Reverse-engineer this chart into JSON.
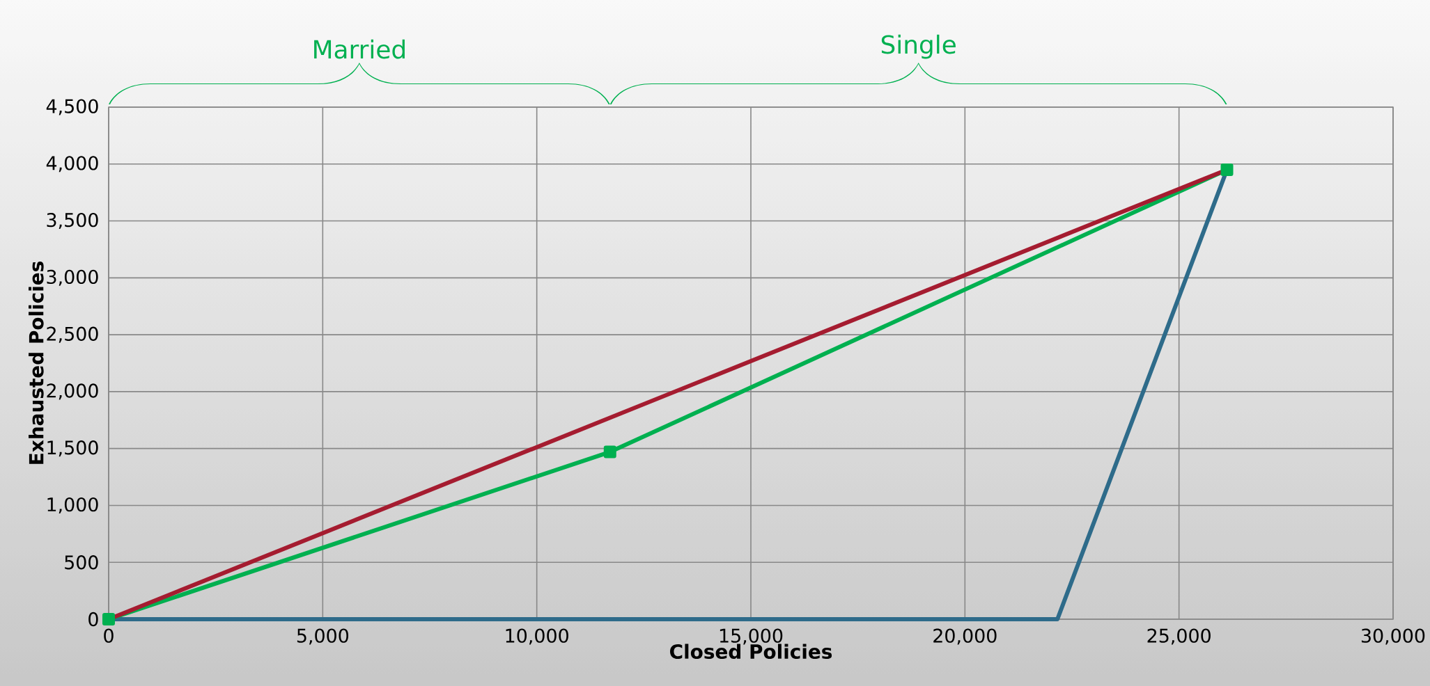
{
  "chart_data": {
    "type": "line",
    "xlabel": "Closed Policies",
    "ylabel": "Exhausted Policies",
    "xlim": [
      0,
      30000
    ],
    "ylim": [
      0,
      4500
    ],
    "xticks": [
      {
        "value": 0,
        "label": "0"
      },
      {
        "value": 5000,
        "label": "5,000"
      },
      {
        "value": 10000,
        "label": "10,000"
      },
      {
        "value": 15000,
        "label": "15,000"
      },
      {
        "value": 20000,
        "label": "20,000"
      },
      {
        "value": 25000,
        "label": "25,000"
      },
      {
        "value": 30000,
        "label": "30,000"
      }
    ],
    "yticks": [
      {
        "value": 0,
        "label": "0"
      },
      {
        "value": 500,
        "label": "500"
      },
      {
        "value": 1000,
        "label": "1,000"
      },
      {
        "value": 1500,
        "label": "1,500"
      },
      {
        "value": 2000,
        "label": "2,000"
      },
      {
        "value": 2500,
        "label": "2,500"
      },
      {
        "value": 3000,
        "label": "3,000"
      },
      {
        "value": 3500,
        "label": "3,500"
      },
      {
        "value": 4000,
        "label": "4,000"
      },
      {
        "value": 4500,
        "label": "4,500"
      }
    ],
    "grid": true,
    "annotations": [
      "Married",
      "Single"
    ],
    "series": [
      {
        "color": "#2e6b8a",
        "marker": "none",
        "x": [
          0,
          22160,
          26120
        ],
        "values": [
          0,
          0,
          3950
        ]
      },
      {
        "color": "#00b050",
        "marker": "square",
        "x": [
          0,
          11710,
          26120
        ],
        "values": [
          0,
          1470,
          3950
        ]
      },
      {
        "color": "#a51c30",
        "marker": "none",
        "x": [
          0,
          26120
        ],
        "values": [
          0,
          3950
        ]
      }
    ]
  }
}
